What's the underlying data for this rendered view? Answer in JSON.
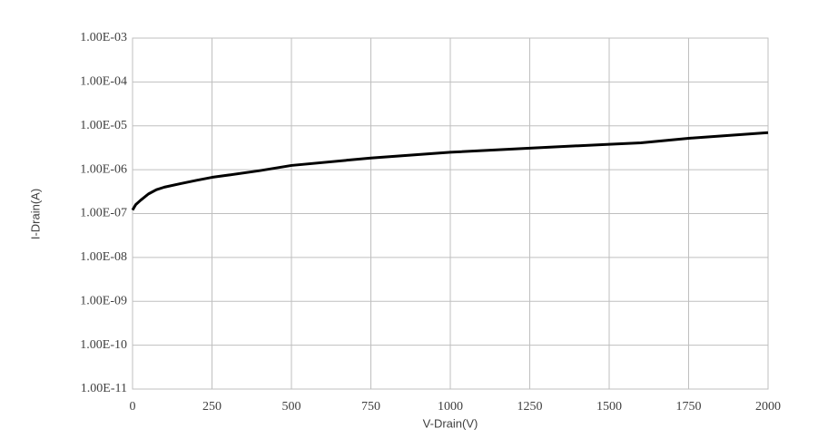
{
  "chart_data": {
    "type": "line",
    "log_y": true,
    "grid": true,
    "x_label": "V-Drain(V)",
    "y_label": "I-Drain(A)",
    "xlim": [
      0,
      2000
    ],
    "xticks": [
      0,
      250,
      500,
      750,
      1000,
      1250,
      1500,
      1750,
      2000
    ],
    "ylim": [
      1e-11,
      0.001
    ],
    "yticks": [
      {
        "value": 1e-11,
        "label": "1.00E-11"
      },
      {
        "value": 1e-10,
        "label": "1.00E-10"
      },
      {
        "value": 1e-09,
        "label": "1.00E-09"
      },
      {
        "value": 1e-08,
        "label": "1.00E-08"
      },
      {
        "value": 1e-07,
        "label": "1.00E-07"
      },
      {
        "value": 1e-06,
        "label": "1.00E-06"
      },
      {
        "value": 1e-05,
        "label": "1.00E-05"
      },
      {
        "value": 0.0001,
        "label": "1.00E-04"
      },
      {
        "value": 0.001,
        "label": "1.00E-03"
      }
    ],
    "x": [
      0,
      10,
      25,
      50,
      75,
      100,
      150,
      200,
      250,
      300,
      400,
      500,
      750,
      1000,
      1250,
      1500,
      1600,
      1750,
      2000
    ],
    "series": [
      {
        "color": "#000000",
        "values": [
          1.2e-07,
          1.6e-07,
          2e-07,
          2.8e-07,
          3.5e-07,
          4e-07,
          4.8e-07,
          5.7e-07,
          6.7e-07,
          7.5e-07,
          9.5e-07,
          1.25e-06,
          1.85e-06,
          2.5e-06,
          3.1e-06,
          3.8e-06,
          4.1e-06,
          5.2e-06,
          7e-06
        ]
      }
    ]
  }
}
